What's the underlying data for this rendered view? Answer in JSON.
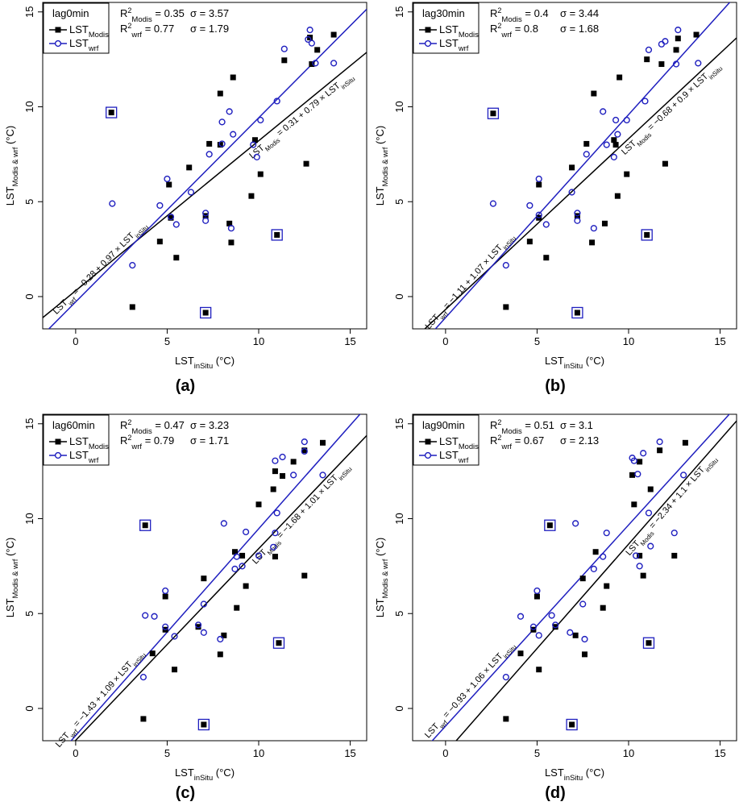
{
  "chart_data": [
    {
      "panel_label": "(a)",
      "type": "scatter",
      "lag_label": "lag0min",
      "xlabel": "LST_inSitu (°C)",
      "ylabel": "LST_Modis & wrf (°C)",
      "xlim": [
        -1.8,
        15.9
      ],
      "ylim": [
        -1.7,
        15.5
      ],
      "xticks": [
        0,
        5,
        10,
        15
      ],
      "yticks": [
        0,
        5,
        10,
        15
      ],
      "legend": [
        "LST_Modis",
        "LST_wrf"
      ],
      "stats": {
        "r2_modis": "0.35",
        "sigma_modis": "3.57",
        "r2_wrf": "0.77",
        "sigma_wrf": "1.79"
      },
      "fit_modis": {
        "intercept": 0.31,
        "slope": 0.79,
        "label": "LST_Modis = 0.31 + 0.79 × LST_inSitu"
      },
      "fit_wrf": {
        "intercept": -0.28,
        "slope": 0.97,
        "label": "LST_wrf = −0.28 + 0.97 × LST_inSitu"
      },
      "series": [
        {
          "name": "LST_Modis",
          "color": "#000000",
          "marker": "square",
          "points": [
            [
              3.1,
              -0.55
            ],
            [
              4.6,
              2.9
            ],
            [
              5.1,
              5.9
            ],
            [
              5.2,
              4.15
            ],
            [
              5.5,
              2.05
            ],
            [
              6.2,
              6.8
            ],
            [
              7.1,
              4.25
            ],
            [
              7.3,
              8.05
            ],
            [
              7.9,
              10.7
            ],
            [
              7.9,
              8.0
            ],
            [
              8.4,
              3.85
            ],
            [
              8.5,
              2.85
            ],
            [
              8.6,
              11.55
            ],
            [
              9.6,
              5.3
            ],
            [
              9.8,
              8.25
            ],
            [
              10.1,
              6.45
            ],
            [
              11.4,
              12.45
            ],
            [
              12.6,
              7.0
            ],
            [
              12.8,
              13.65
            ],
            [
              12.9,
              12.25
            ],
            [
              13.2,
              13.0
            ],
            [
              14.1,
              13.8
            ]
          ]
        },
        {
          "name": "LST_wrf",
          "color": "#1f1fbf",
          "marker": "circle",
          "points": [
            [
              2.0,
              4.9
            ],
            [
              3.1,
              1.65
            ],
            [
              4.6,
              4.8
            ],
            [
              5.0,
              6.2
            ],
            [
              5.2,
              4.2
            ],
            [
              5.5,
              3.8
            ],
            [
              6.3,
              5.5
            ],
            [
              7.1,
              4.0
            ],
            [
              7.1,
              4.4
            ],
            [
              7.3,
              7.5
            ],
            [
              8.0,
              9.2
            ],
            [
              8.0,
              8.05
            ],
            [
              8.4,
              9.75
            ],
            [
              8.5,
              3.6
            ],
            [
              8.6,
              8.55
            ],
            [
              9.7,
              8.0
            ],
            [
              9.9,
              7.35
            ],
            [
              10.1,
              9.3
            ],
            [
              11.0,
              10.3
            ],
            [
              11.4,
              13.05
            ],
            [
              12.7,
              13.55
            ],
            [
              12.8,
              14.05
            ],
            [
              13.1,
              12.3
            ],
            [
              12.9,
              13.35
            ],
            [
              14.1,
              12.3
            ]
          ]
        },
        {
          "name": "outliers",
          "color": "#1f1fbf",
          "marker": "boxed-square",
          "points": [
            [
              1.95,
              9.7
            ],
            [
              7.1,
              -0.85
            ],
            [
              11.0,
              3.25
            ]
          ]
        }
      ]
    },
    {
      "panel_label": "(b)",
      "type": "scatter",
      "lag_label": "lag30min",
      "xlabel": "LST_inSitu (°C)",
      "ylabel": "LST_Modis & wrf (°C)",
      "xlim": [
        -1.8,
        15.9
      ],
      "ylim": [
        -1.7,
        15.5
      ],
      "xticks": [
        0,
        5,
        10,
        15
      ],
      "yticks": [
        0,
        5,
        10,
        15
      ],
      "legend": [
        "LST_Modis",
        "LST_wrf"
      ],
      "stats": {
        "r2_modis": "0.4",
        "sigma_modis": "3.44",
        "r2_wrf": "0.8",
        "sigma_wrf": "1.68"
      },
      "fit_modis": {
        "intercept": -0.68,
        "slope": 0.9,
        "label": "LST_Modis = −0.68 + 0.9 × LST_inSitu"
      },
      "fit_wrf": {
        "intercept": -1.11,
        "slope": 1.07,
        "label": "LST_wrf = −1.11 + 1.07 × LST_inSitu"
      },
      "series": [
        {
          "name": "LST_Modis",
          "color": "#000000",
          "marker": "square",
          "points": [
            [
              3.3,
              -0.55
            ],
            [
              4.6,
              2.9
            ],
            [
              5.1,
              5.9
            ],
            [
              5.1,
              4.15
            ],
            [
              5.5,
              2.05
            ],
            [
              6.9,
              6.8
            ],
            [
              7.2,
              4.25
            ],
            [
              7.7,
              8.05
            ],
            [
              8.1,
              10.7
            ],
            [
              8.0,
              2.85
            ],
            [
              8.7,
              3.85
            ],
            [
              9.2,
              8.25
            ],
            [
              9.3,
              8.0
            ],
            [
              9.4,
              5.3
            ],
            [
              9.5,
              11.55
            ],
            [
              9.9,
              6.45
            ],
            [
              11.0,
              12.5
            ],
            [
              11.8,
              12.25
            ],
            [
              12.0,
              7.0
            ],
            [
              12.6,
              13.0
            ],
            [
              12.7,
              13.6
            ],
            [
              13.7,
              13.8
            ]
          ]
        },
        {
          "name": "LST_wrf",
          "color": "#1f1fbf",
          "marker": "circle",
          "points": [
            [
              2.6,
              4.9
            ],
            [
              3.3,
              1.65
            ],
            [
              4.6,
              4.8
            ],
            [
              5.1,
              6.2
            ],
            [
              5.1,
              4.3
            ],
            [
              5.5,
              3.8
            ],
            [
              6.9,
              5.5
            ],
            [
              7.2,
              4.0
            ],
            [
              7.2,
              4.4
            ],
            [
              7.7,
              7.5
            ],
            [
              8.1,
              3.6
            ],
            [
              8.6,
              9.75
            ],
            [
              8.8,
              8.0
            ],
            [
              9.2,
              7.35
            ],
            [
              9.3,
              9.3
            ],
            [
              9.4,
              8.55
            ],
            [
              9.9,
              9.3
            ],
            [
              10.9,
              10.3
            ],
            [
              11.1,
              13.0
            ],
            [
              11.8,
              13.3
            ],
            [
              12.0,
              13.45
            ],
            [
              12.6,
              12.25
            ],
            [
              12.7,
              14.05
            ],
            [
              13.8,
              12.3
            ]
          ]
        },
        {
          "name": "outliers",
          "color": "#1f1fbf",
          "marker": "boxed-square",
          "points": [
            [
              2.6,
              9.65
            ],
            [
              7.2,
              -0.85
            ],
            [
              11.0,
              3.25
            ]
          ]
        }
      ]
    },
    {
      "panel_label": "(c)",
      "type": "scatter",
      "lag_label": "lag60min",
      "xlabel": "LST_inSitu (°C)",
      "ylabel": "LST_Modis & wrf (°C)",
      "xlim": [
        -1.8,
        15.9
      ],
      "ylim": [
        -1.7,
        15.5
      ],
      "xticks": [
        0,
        5,
        10,
        15
      ],
      "yticks": [
        0,
        5,
        10,
        15
      ],
      "legend": [
        "LST_Modis",
        "LST_wrf"
      ],
      "stats": {
        "r2_modis": "0.47",
        "sigma_modis": "3.23",
        "r2_wrf": "0.79",
        "sigma_wrf": "1.71"
      },
      "fit_modis": {
        "intercept": -1.68,
        "slope": 1.01,
        "label": "LST_Modis = −1.68 + 1.01 × LST_inSitu"
      },
      "fit_wrf": {
        "intercept": -1.43,
        "slope": 1.09,
        "label": "LST_wrf = −1.43 + 1.09 × LST_inSitu"
      },
      "series": [
        {
          "name": "LST_Modis",
          "color": "#000000",
          "marker": "square",
          "points": [
            [
              3.7,
              -0.55
            ],
            [
              4.2,
              2.9
            ],
            [
              4.9,
              5.9
            ],
            [
              4.9,
              4.15
            ],
            [
              5.4,
              2.05
            ],
            [
              6.7,
              4.3
            ],
            [
              7.0,
              6.85
            ],
            [
              7.9,
              2.85
            ],
            [
              8.1,
              3.85
            ],
            [
              8.7,
              8.25
            ],
            [
              8.8,
              5.3
            ],
            [
              9.1,
              8.05
            ],
            [
              9.3,
              6.45
            ],
            [
              10.0,
              10.75
            ],
            [
              10.8,
              11.55
            ],
            [
              10.9,
              12.5
            ],
            [
              10.9,
              8.0
            ],
            [
              11.3,
              12.25
            ],
            [
              11.9,
              13.0
            ],
            [
              12.5,
              7.0
            ],
            [
              12.5,
              13.6
            ],
            [
              13.5,
              14.0
            ]
          ]
        },
        {
          "name": "LST_wrf",
          "color": "#1f1fbf",
          "marker": "circle",
          "points": [
            [
              3.7,
              1.65
            ],
            [
              3.8,
              4.9
            ],
            [
              4.3,
              4.85
            ],
            [
              4.9,
              6.2
            ],
            [
              4.9,
              4.3
            ],
            [
              5.4,
              3.8
            ],
            [
              6.7,
              4.4
            ],
            [
              7.0,
              4.0
            ],
            [
              7.0,
              5.5
            ],
            [
              7.9,
              3.65
            ],
            [
              8.1,
              9.75
            ],
            [
              8.7,
              7.35
            ],
            [
              8.8,
              8.0
            ],
            [
              9.1,
              7.5
            ],
            [
              9.3,
              9.3
            ],
            [
              10.0,
              8.05
            ],
            [
              10.8,
              8.5
            ],
            [
              10.9,
              9.25
            ],
            [
              10.9,
              13.05
            ],
            [
              11.0,
              10.3
            ],
            [
              11.3,
              13.25
            ],
            [
              11.9,
              12.3
            ],
            [
              12.5,
              13.55
            ],
            [
              12.5,
              14.05
            ],
            [
              13.5,
              12.3
            ]
          ]
        },
        {
          "name": "outliers",
          "color": "#1f1fbf",
          "marker": "boxed-square",
          "points": [
            [
              3.8,
              9.65
            ],
            [
              7.0,
              -0.85
            ],
            [
              11.1,
              3.45
            ]
          ]
        }
      ]
    },
    {
      "panel_label": "(d)",
      "type": "scatter",
      "lag_label": "lag90min",
      "xlabel": "LST_inSitu (°C)",
      "ylabel": "LST_Modis & wrf (°C)",
      "xlim": [
        -1.8,
        15.9
      ],
      "ylim": [
        -1.7,
        15.5
      ],
      "xticks": [
        0,
        5,
        10,
        15
      ],
      "yticks": [
        0,
        5,
        10,
        15
      ],
      "legend": [
        "LST_Modis",
        "LST_wrf"
      ],
      "stats": {
        "r2_modis": "0.51",
        "sigma_modis": "3.1",
        "r2_wrf": "0.67",
        "sigma_wrf": "2.13"
      },
      "fit_modis": {
        "intercept": -2.34,
        "slope": 1.1,
        "label": "LST_Modis = −2.34 + 1.1 × LST_inSitu"
      },
      "fit_wrf": {
        "intercept": -0.93,
        "slope": 1.06,
        "label": "LST_wrf = −0.93 + 1.06 × LST_inSitu"
      },
      "series": [
        {
          "name": "LST_Modis",
          "color": "#000000",
          "marker": "square",
          "points": [
            [
              3.3,
              -0.55
            ],
            [
              4.1,
              2.9
            ],
            [
              4.8,
              4.15
            ],
            [
              5.0,
              5.9
            ],
            [
              5.1,
              2.05
            ],
            [
              6.0,
              4.3
            ],
            [
              7.1,
              3.85
            ],
            [
              7.5,
              6.85
            ],
            [
              7.6,
              2.85
            ],
            [
              8.2,
              8.25
            ],
            [
              8.6,
              5.3
            ],
            [
              8.8,
              6.45
            ],
            [
              10.2,
              12.3
            ],
            [
              10.3,
              10.75
            ],
            [
              10.6,
              8.05
            ],
            [
              10.6,
              13.0
            ],
            [
              10.8,
              7.0
            ],
            [
              11.2,
              11.55
            ],
            [
              11.7,
              13.6
            ],
            [
              12.5,
              8.05
            ],
            [
              13.1,
              14.0
            ]
          ]
        },
        {
          "name": "LST_wrf",
          "color": "#1f1fbf",
          "marker": "circle",
          "points": [
            [
              3.3,
              1.65
            ],
            [
              4.1,
              4.85
            ],
            [
              4.8,
              4.3
            ],
            [
              5.0,
              6.2
            ],
            [
              5.1,
              3.85
            ],
            [
              5.8,
              4.9
            ],
            [
              6.0,
              4.4
            ],
            [
              6.8,
              4.0
            ],
            [
              7.1,
              9.75
            ],
            [
              7.5,
              5.5
            ],
            [
              7.6,
              3.65
            ],
            [
              8.1,
              7.35
            ],
            [
              8.6,
              8.0
            ],
            [
              8.8,
              9.25
            ],
            [
              10.2,
              13.2
            ],
            [
              10.3,
              13.05
            ],
            [
              10.4,
              8.05
            ],
            [
              10.5,
              12.35
            ],
            [
              10.6,
              7.5
            ],
            [
              10.8,
              13.45
            ],
            [
              11.1,
              10.3
            ],
            [
              11.2,
              8.55
            ],
            [
              11.7,
              14.05
            ],
            [
              12.5,
              9.25
            ],
            [
              13.0,
              12.3
            ]
          ]
        },
        {
          "name": "outliers",
          "color": "#1f1fbf",
          "marker": "boxed-square",
          "points": [
            [
              5.7,
              9.65
            ],
            [
              6.9,
              -0.85
            ],
            [
              11.1,
              3.45
            ]
          ]
        }
      ]
    }
  ]
}
